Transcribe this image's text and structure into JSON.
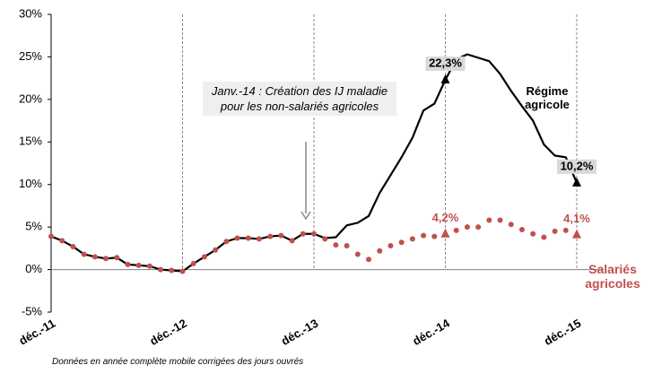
{
  "chart_data": {
    "type": "line",
    "categories": [
      "déc.-11",
      null,
      null,
      null,
      null,
      null,
      null,
      null,
      null,
      null,
      null,
      null,
      "déc.-12",
      null,
      null,
      null,
      null,
      null,
      null,
      null,
      null,
      null,
      null,
      null,
      "déc.-13",
      null,
      null,
      null,
      null,
      null,
      null,
      null,
      null,
      null,
      null,
      null,
      "déc.-14",
      null,
      null,
      null,
      null,
      null,
      null,
      null,
      null,
      null,
      null,
      null,
      "déc.-15"
    ],
    "series": [
      {
        "name": "Régime agricole",
        "color": "#000000",
        "style": "line",
        "values": [
          3.9,
          3.4,
          2.7,
          1.8,
          1.5,
          1.3,
          1.4,
          0.6,
          0.5,
          0.4,
          0.0,
          -0.1,
          -0.2,
          0.7,
          1.5,
          2.3,
          3.3,
          3.7,
          3.7,
          3.6,
          3.9,
          4.0,
          3.4,
          4.2,
          4.2,
          3.7,
          3.8,
          5.2,
          5.5,
          6.3,
          9.0,
          11.1,
          13.2,
          15.5,
          18.7,
          19.5,
          22.3,
          24.7,
          25.3,
          24.9,
          24.5,
          23.0,
          21.0,
          19.2,
          17.5,
          14.7,
          13.4,
          13.2,
          10.2
        ],
        "value_labels": [
          null,
          null,
          null,
          null,
          null,
          null,
          null,
          null,
          null,
          null,
          null,
          null,
          null,
          null,
          null,
          null,
          null,
          null,
          null,
          null,
          null,
          null,
          null,
          null,
          null,
          null,
          null,
          null,
          null,
          null,
          null,
          null,
          null,
          null,
          null,
          null,
          "22,3%",
          null,
          null,
          null,
          null,
          null,
          null,
          null,
          null,
          null,
          null,
          null,
          "10,2%"
        ]
      },
      {
        "name": "Salariés agricoles",
        "color": "#c0504d",
        "style": "dots",
        "values": [
          3.9,
          3.4,
          2.7,
          1.8,
          1.5,
          1.3,
          1.4,
          0.6,
          0.5,
          0.4,
          0.0,
          -0.1,
          -0.2,
          0.7,
          1.5,
          2.3,
          3.3,
          3.7,
          3.7,
          3.6,
          3.9,
          4.0,
          3.4,
          4.2,
          4.2,
          3.6,
          2.9,
          2.8,
          1.8,
          1.2,
          2.2,
          2.8,
          3.2,
          3.6,
          4.0,
          3.9,
          4.2,
          4.6,
          5.0,
          5.0,
          5.8,
          5.8,
          5.3,
          4.7,
          4.2,
          3.8,
          4.5,
          4.6,
          4.1
        ],
        "value_labels": [
          null,
          null,
          null,
          null,
          null,
          null,
          null,
          null,
          null,
          null,
          null,
          null,
          null,
          null,
          null,
          null,
          null,
          null,
          null,
          null,
          null,
          null,
          null,
          null,
          null,
          null,
          null,
          null,
          null,
          null,
          null,
          null,
          null,
          null,
          null,
          null,
          "4,2%",
          null,
          null,
          null,
          null,
          null,
          null,
          null,
          null,
          null,
          null,
          null,
          "4,1%"
        ]
      }
    ],
    "ylim": [
      -5,
      30
    ],
    "yticks": [
      {
        "value": -5,
        "label": "-5%"
      },
      {
        "value": 0,
        "label": "0%"
      },
      {
        "value": 5,
        "label": "5%"
      },
      {
        "value": 10,
        "label": "10%"
      },
      {
        "value": 15,
        "label": "15%"
      },
      {
        "value": 20,
        "label": "20%"
      },
      {
        "value": 25,
        "label": "25%"
      },
      {
        "value": 30,
        "label": "30%"
      }
    ],
    "annotation": "Janv.-14 : Création des IJ maladie pour les non-salariés agricoles",
    "note": "Données en année complète mobile corrigées des jours ouvrés",
    "grid": "vertical-dashed"
  }
}
